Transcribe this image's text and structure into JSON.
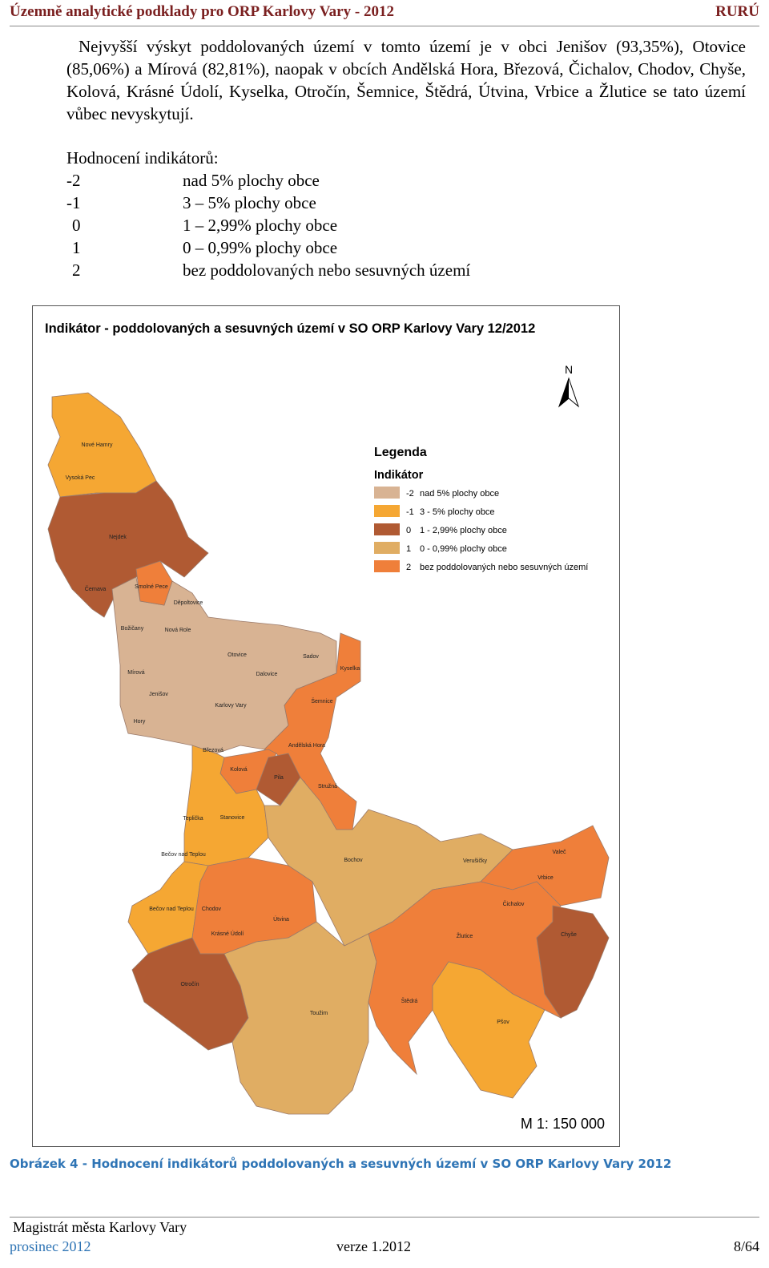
{
  "header": {
    "title": "Územně analytické podklady pro ORP Karlovy Vary - 2012",
    "right": "RURÚ"
  },
  "paragraph": "Nejvyšší výskyt poddolovaných území v tomto území je v obci Jenišov (93,35%), Otovice (85,06%) a Mírová (82,81%), naopak v obcích Andělská Hora, Březová, Čichalov, Chodov, Chyše, Kolová, Krásné Údolí, Kyselka, Otročín, Šemnice, Štědrá, Útvina, Vrbice a Žlutice se tato území vůbec nevyskytují.",
  "rating": {
    "heading": "Hodnocení indikátorů:",
    "rows": [
      [
        "-2",
        "nad 5% plochy obce"
      ],
      [
        "-1",
        "3 – 5% plochy obce"
      ],
      [
        "0",
        "1 – 2,99% plochy obce"
      ],
      [
        "1",
        "0 – 0,99% plochy obce"
      ],
      [
        "2",
        "bez poddolovaných nebo sesuvných území"
      ]
    ]
  },
  "map": {
    "title": "Indikátor - poddolovaných a sesuvných území v SO ORP Karlovy Vary 12/2012",
    "north": "N",
    "legend_title": "Legenda",
    "legend_subtitle": "Indikátor",
    "legend_items": [
      {
        "code": "-2",
        "label": "nad 5% plochy obce",
        "color": "#d8b393"
      },
      {
        "code": "-1",
        "label": "3 - 5% plochy obce",
        "color": "#f5a733"
      },
      {
        "code": "0",
        "label": "1 - 2,99% plochy obce",
        "color": "#b05a33"
      },
      {
        "code": "1",
        "label": "0 - 0,99% plochy obce",
        "color": "#e0ad63"
      },
      {
        "code": "2",
        "label": "bez poddolovaných nebo sesuvných území",
        "color": "#ef7f3a"
      }
    ],
    "scale": "M 1: 150 000",
    "places": [
      "Nové Hamry",
      "Vysoká Pec",
      "Nejdek",
      "Černava",
      "Smolné Pece",
      "Děpoltovice",
      "Božičany",
      "Nová Role",
      "Otovice",
      "Sadov",
      "Kyselka",
      "Mírová",
      "Dalovice",
      "Jenišov",
      "Karlovy Vary",
      "Šemnice",
      "Hory",
      "Březová",
      "Andělská Hora",
      "Kolová",
      "Pila",
      "Stružná",
      "Teplička",
      "Stanovice",
      "Bečov nad Teplou",
      "Bochov",
      "Verušičky",
      "Valeč",
      "Vrbice",
      "Bečov nad Teplou",
      "Chodov",
      "Útvina",
      "Čichalov",
      "Krásné Údolí",
      "Žlutice",
      "Chyše",
      "Otročín",
      "Štědrá",
      "Toužim",
      "Pšov"
    ]
  },
  "caption": "Obrázek 4 - Hodnocení indikátorů poddolovaných a sesuvných území v SO ORP Karlovy Vary 2012",
  "footer": {
    "org": "Magistrát města Karlovy Vary",
    "date": "prosinec 2012",
    "version": "verze 1.2012",
    "page": "8/64"
  }
}
